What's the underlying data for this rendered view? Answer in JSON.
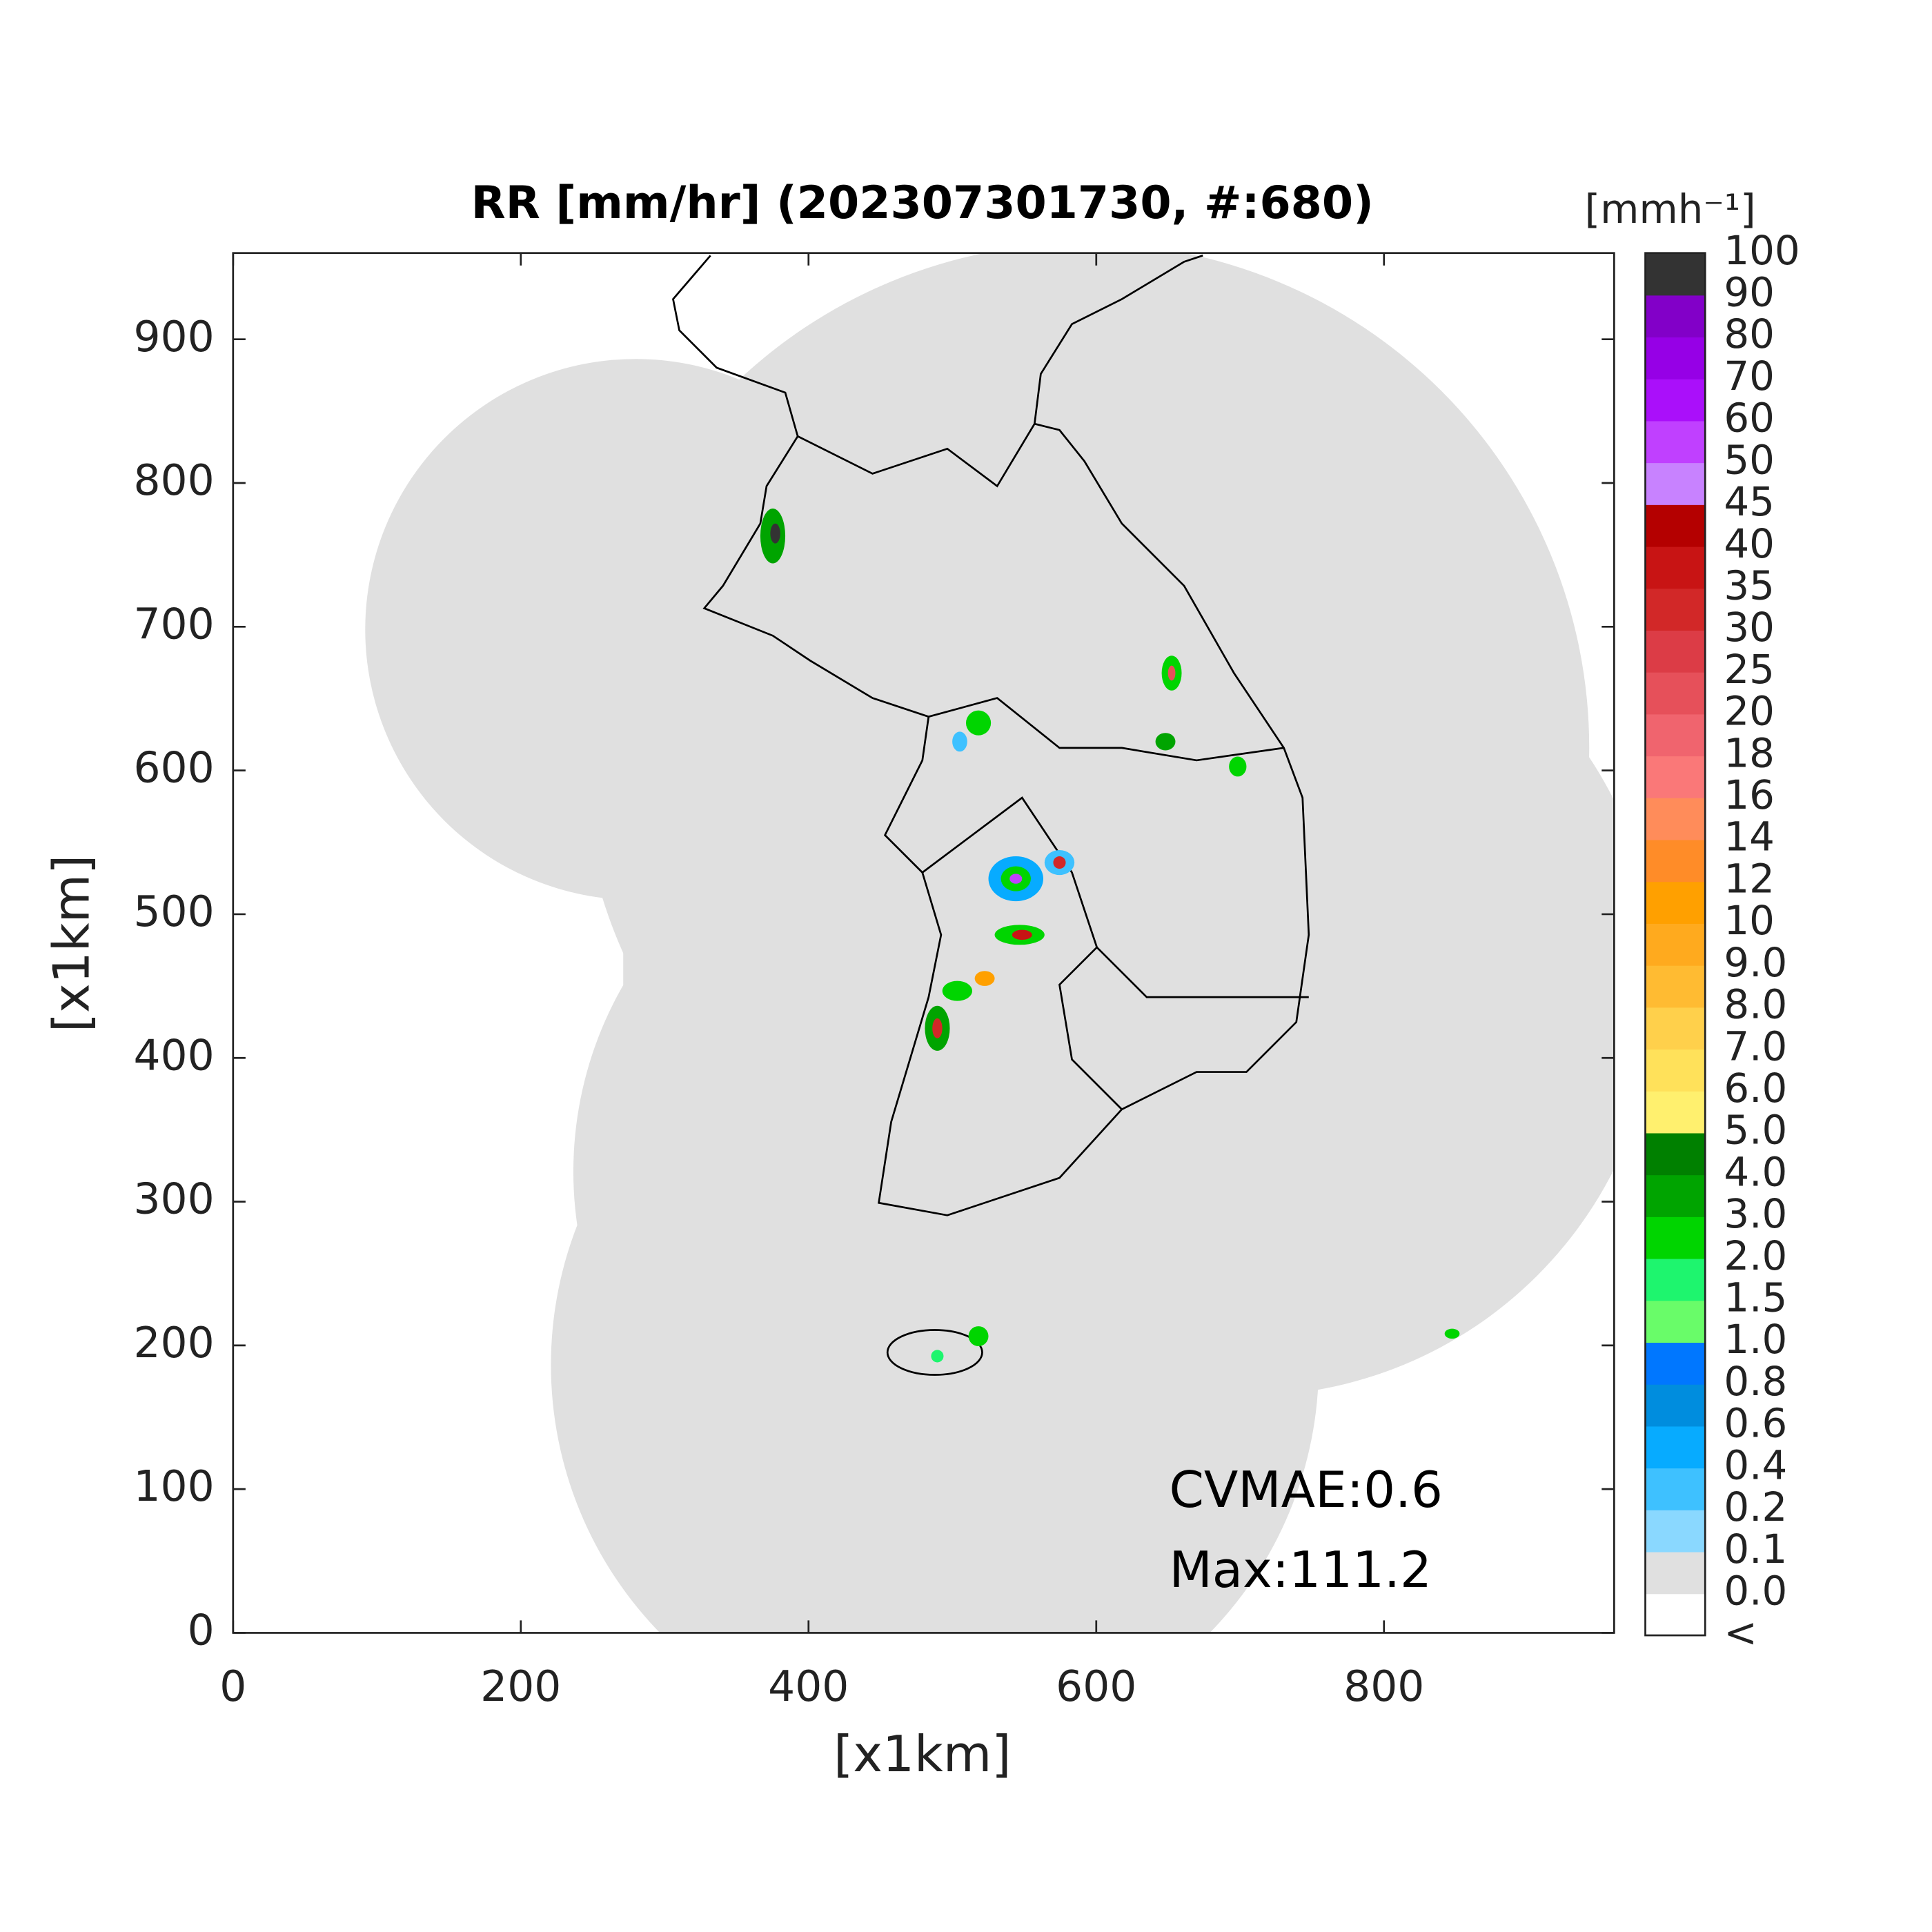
{
  "title": "RR [mm/hr] (202307301730, #:680)",
  "x_axis": {
    "label": "[x1km]",
    "lim": [
      0,
      960
    ],
    "ticks": [
      0,
      200,
      400,
      600,
      800
    ]
  },
  "y_axis": {
    "label": "[x1km]",
    "lim": [
      0,
      960
    ],
    "ticks": [
      0,
      100,
      200,
      300,
      400,
      500,
      600,
      700,
      800,
      900
    ]
  },
  "colorbar": {
    "unit": "[mmh⁻¹]",
    "labels": [
      "<",
      "0.0",
      "0.1",
      "0.2",
      "0.4",
      "0.6",
      "0.8",
      "1.0",
      "1.5",
      "2.0",
      "3.0",
      "4.0",
      "5.0",
      "6.0",
      "7.0",
      "8.0",
      "9.0",
      "10",
      "12",
      "14",
      "16",
      "18",
      "20",
      "25",
      "30",
      "35",
      "40",
      "45",
      "50",
      "60",
      "70",
      "80",
      "90",
      "100"
    ],
    "colors": [
      "#ffffff",
      "#e0e0e0",
      "#8ad8ff",
      "#3ec1ff",
      "#07abff",
      "#008dde",
      "#0077ff",
      "#69fc69",
      "#1ef56e",
      "#00d500",
      "#00a400",
      "#008000",
      "#fff06e",
      "#ffe15a",
      "#ffd04b",
      "#ffbb32",
      "#ffaa1e",
      "#ffa000",
      "#ff8c28",
      "#ff8c5a",
      "#fa7878",
      "#f0646e",
      "#e6505a",
      "#dc3c46",
      "#d22828",
      "#c81414",
      "#b40000",
      "#c882ff",
      "#c040ff",
      "#aa0ffa",
      "#9600e6",
      "#8200c8",
      "#333333"
    ]
  },
  "annotations": [
    "CVMAE:0.6",
    "Max:111.2"
  ]
}
